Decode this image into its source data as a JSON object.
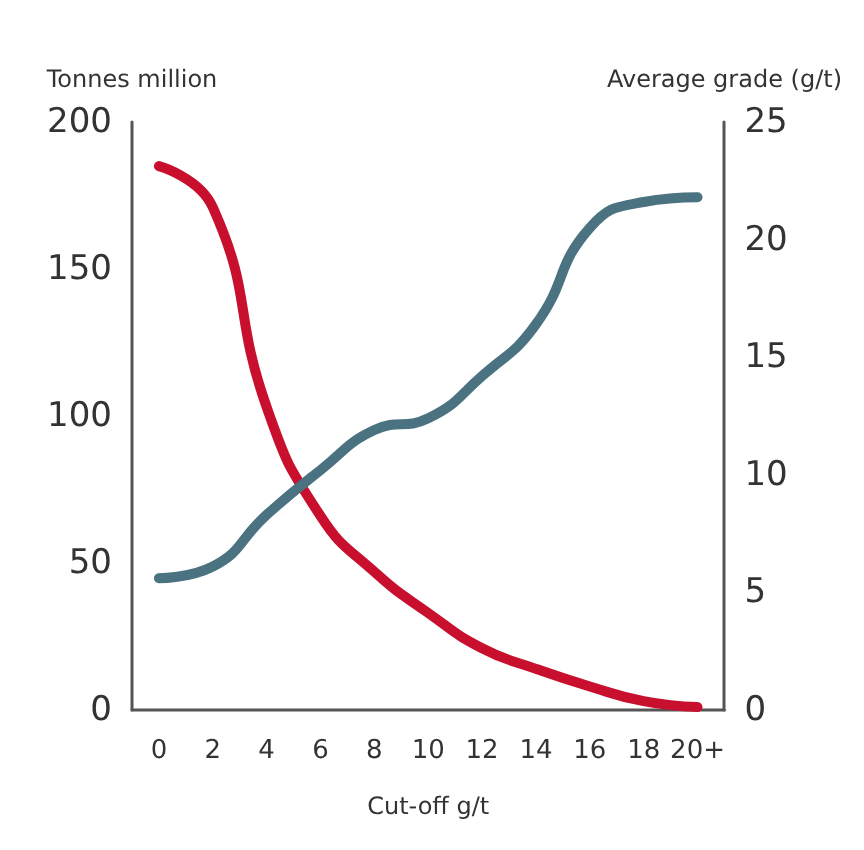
{
  "chart_data": {
    "type": "line",
    "xlabel": "Cut-off g/t",
    "ylabel": "Tonnes million",
    "y2label": "Average grade (g/t)",
    "categories": [
      "0",
      "2",
      "4",
      "6",
      "8",
      "10",
      "12",
      "14",
      "16",
      "18",
      "20+"
    ],
    "series": [
      {
        "color": "#c8102e",
        "values": [
          185,
          171,
          103,
          66,
          47,
          33,
          21,
          14,
          8,
          3,
          1
        ]
      },
      {
        "color": "#4a7280",
        "axis": "y2",
        "values": [
          5.6,
          6.1,
          8.3,
          10.2,
          11.9,
          12.4,
          14.2,
          16.4,
          20.5,
          21.6,
          21.8
        ]
      }
    ],
    "ylim": [
      0,
      200
    ],
    "yticks": [
      0,
      50,
      100,
      150,
      200
    ],
    "y2lim": [
      0,
      25
    ],
    "y2ticks": [
      0,
      5,
      10,
      15,
      20,
      25
    ],
    "grid": false,
    "marker": "none",
    "line_style": "solid"
  }
}
